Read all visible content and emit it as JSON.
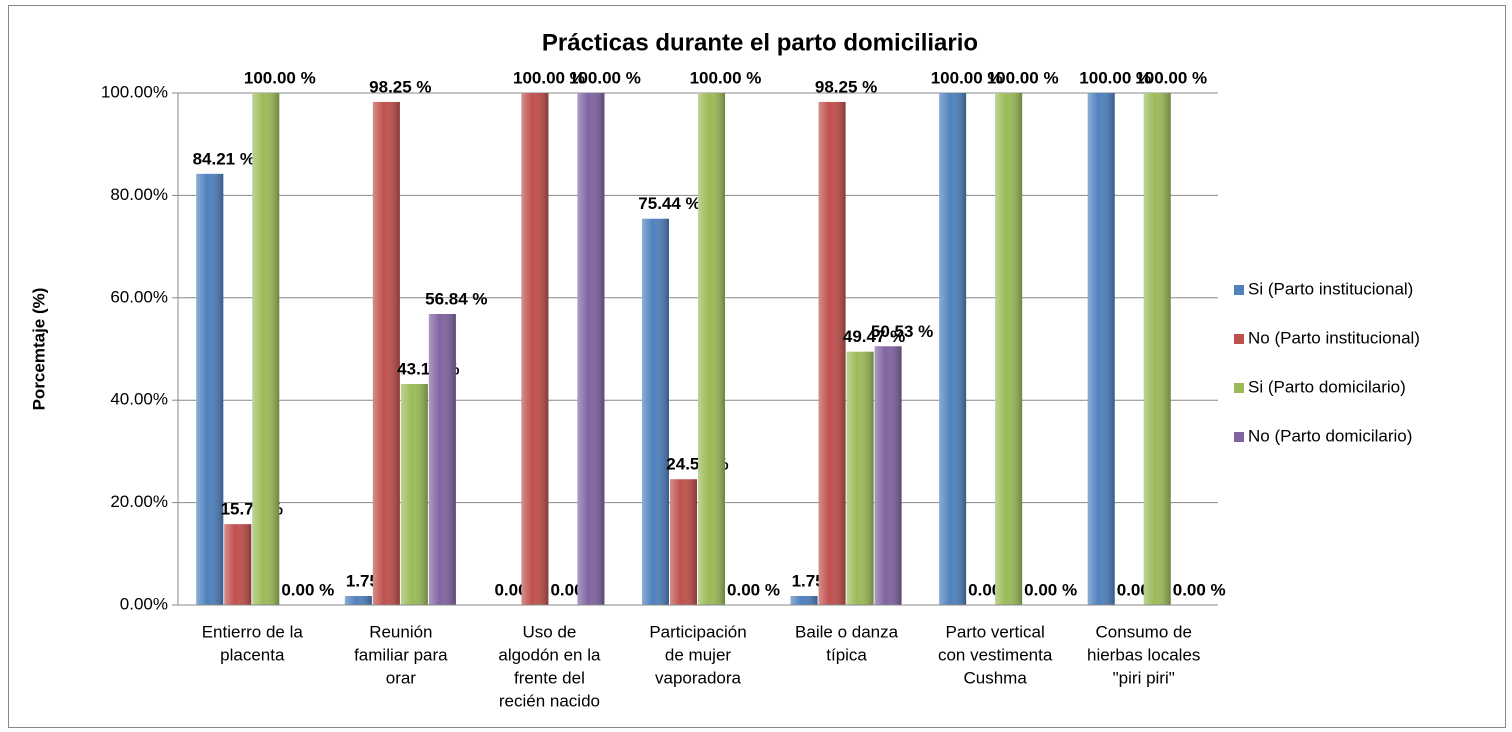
{
  "chart_data": {
    "type": "bar",
    "title": "Prácticas durante el parto domiciliario",
    "y_label": "Porcemtaje (%)",
    "categories": [
      [
        "Entierro de la",
        "placenta"
      ],
      [
        "Reunión",
        "familiar para",
        "orar"
      ],
      [
        "Uso de",
        "algodón en la",
        "frente del",
        "recién nacido"
      ],
      [
        "Participación",
        "de mujer",
        "vaporadora"
      ],
      [
        "Baile o danza",
        "típica"
      ],
      [
        "Parto vertical",
        "con vestimenta",
        "Cushma"
      ],
      [
        "Consumo de",
        "hierbas locales",
        "\"piri piri\""
      ]
    ],
    "series": [
      {
        "name": "Si (Parto institucional)",
        "color": "#4f81bd",
        "values": [
          84.21,
          1.75,
          0,
          75.44,
          1.75,
          100,
          100
        ],
        "value_labels": [
          "84.21 %",
          "1.75 %",
          "0.00 %",
          "75.44 %",
          "1.75 %",
          "100.00 %",
          "100.00 %"
        ]
      },
      {
        "name": "No (Parto institucional)",
        "color": "#c0504d",
        "values": [
          15.79,
          98.25,
          100,
          24.56,
          98.25,
          0,
          0
        ],
        "value_labels": [
          "15.79 %",
          "98.25 %",
          "100.00 %",
          "24.56 %",
          "98.25 %",
          "0.00 %",
          "0.00 %"
        ]
      },
      {
        "name": "Si (Parto domicilario)",
        "color": "#9bbb59",
        "values": [
          100,
          43.16,
          0,
          100,
          49.47,
          100,
          100
        ],
        "value_labels": [
          "100.00 %",
          "43.16 %",
          "0.00 %",
          "100.00 %",
          "49.47 %",
          "100.00 %",
          "100.00 %"
        ]
      },
      {
        "name": "No (Parto domicilario)",
        "color": "#8064a2",
        "values": [
          0,
          56.84,
          100,
          0,
          50.53,
          0,
          0
        ],
        "value_labels": [
          "0.00 %",
          "56.84 %",
          "100.00 %",
          "0.00 %",
          "50.53 %",
          "0.00 %",
          "0.00 %"
        ]
      }
    ],
    "ylim": [
      0,
      100
    ],
    "yticks": [
      {
        "value": 0,
        "label": "0.00%"
      },
      {
        "value": 20,
        "label": "20.00%"
      },
      {
        "value": 40,
        "label": "40.00%"
      },
      {
        "value": 60,
        "label": "60.00%"
      },
      {
        "value": 80,
        "label": "80.00%"
      },
      {
        "value": 100,
        "label": "100.00%"
      }
    ],
    "grid": true,
    "legend": "right"
  }
}
